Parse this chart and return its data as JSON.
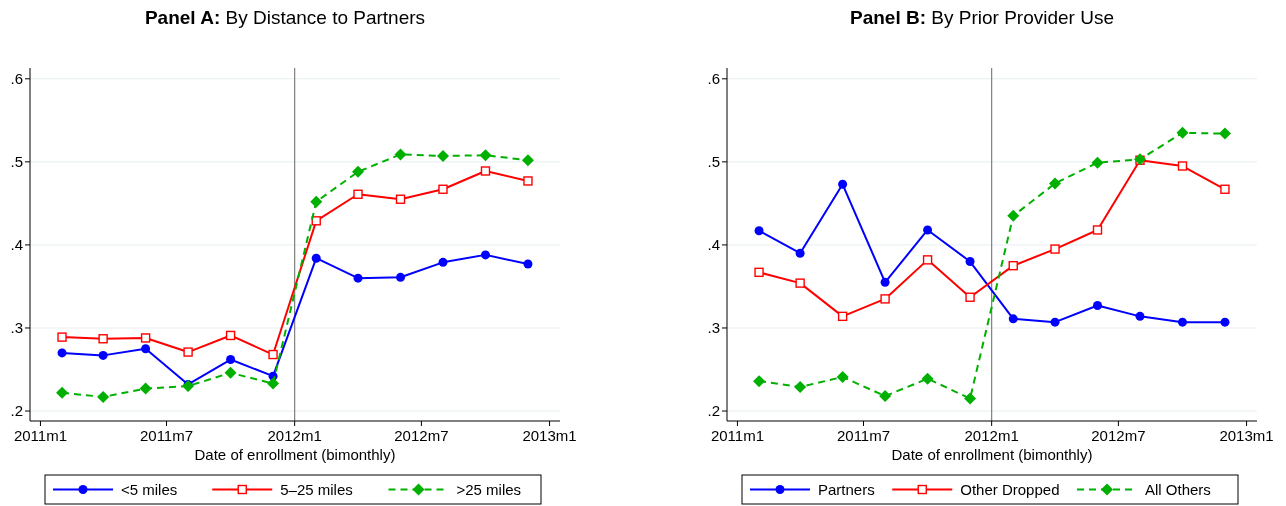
{
  "chart_data": [
    {
      "type": "line",
      "title": "Panel A: By Distance to Partners",
      "xlabel": "Date of enrollment (bimonthly)",
      "x": [
        "2011-02",
        "2011-04",
        "2011-06",
        "2011-08",
        "2011-10",
        "2011-12",
        "2012-02",
        "2012-04",
        "2012-06",
        "2012-08",
        "2012-10",
        "2012-12"
      ],
      "xlim": [
        "2010-12-17",
        "2013-01-16"
      ],
      "xticks": [
        {
          "value": "2011-01",
          "label": "2011m1"
        },
        {
          "value": "2011-07",
          "label": "2011m7"
        },
        {
          "value": "2012-01",
          "label": "2012m1"
        },
        {
          "value": "2012-07",
          "label": "2012m7"
        },
        {
          "value": "2013-01",
          "label": "2013m1"
        }
      ],
      "ylim": [
        0.188,
        0.613
      ],
      "yticks": [
        {
          "value": 0.2,
          "label": ".2"
        },
        {
          "value": 0.3,
          "label": ".3"
        },
        {
          "value": 0.4,
          "label": ".4"
        },
        {
          "value": 0.5,
          "label": ".5"
        },
        {
          "value": 0.6,
          "label": ".6"
        }
      ],
      "grid": "y",
      "legend": "bottom",
      "ref_lines": [
        {
          "axis": "x",
          "value": "2012-01",
          "color": "#7f7f7f"
        }
      ],
      "series": [
        {
          "name": "<5 miles",
          "color": "#0000ff",
          "marker": "circle",
          "line_style": "solid",
          "values": [
            0.27,
            0.267,
            0.275,
            0.232,
            0.262,
            0.242,
            0.384,
            0.36,
            0.361,
            0.379,
            0.388,
            0.377
          ]
        },
        {
          "name": "5–25 miles",
          "color": "#ff0000",
          "marker": "square",
          "line_style": "solid",
          "values": [
            0.289,
            0.287,
            0.288,
            0.271,
            0.291,
            0.268,
            0.429,
            0.461,
            0.455,
            0.467,
            0.489,
            0.477
          ]
        },
        {
          "name": ">25 miles",
          "color": "#00b000",
          "marker": "diamond",
          "line_style": "dashed",
          "values": [
            0.222,
            0.217,
            0.227,
            0.23,
            0.246,
            0.233,
            0.452,
            0.488,
            0.509,
            0.507,
            0.508,
            0.502
          ]
        }
      ]
    },
    {
      "type": "line",
      "title": "Panel B: By Prior Provider Use",
      "xlabel": "Date of enrollment (bimonthly)",
      "x": [
        "2011-02",
        "2011-04",
        "2011-06",
        "2011-08",
        "2011-10",
        "2011-12",
        "2012-02",
        "2012-04",
        "2012-06",
        "2012-08",
        "2012-10",
        "2012-12"
      ],
      "xlim": [
        "2010-12-17",
        "2013-01-16"
      ],
      "xticks": [
        {
          "value": "2011-01",
          "label": "2011m1"
        },
        {
          "value": "2011-07",
          "label": "2011m7"
        },
        {
          "value": "2012-01",
          "label": "2012m1"
        },
        {
          "value": "2012-07",
          "label": "2012m7"
        },
        {
          "value": "2013-01",
          "label": "2013m1"
        }
      ],
      "ylim": [
        0.188,
        0.613
      ],
      "yticks": [
        {
          "value": 0.2,
          "label": ".2"
        },
        {
          "value": 0.3,
          "label": ".3"
        },
        {
          "value": 0.4,
          "label": ".4"
        },
        {
          "value": 0.5,
          "label": ".5"
        },
        {
          "value": 0.6,
          "label": ".6"
        }
      ],
      "grid": "y",
      "legend": "bottom",
      "ref_lines": [
        {
          "axis": "x",
          "value": "2012-01",
          "color": "#7f7f7f"
        }
      ],
      "series": [
        {
          "name": "Partners",
          "color": "#0000ff",
          "marker": "circle",
          "line_style": "solid",
          "values": [
            0.417,
            0.39,
            0.473,
            0.355,
            0.418,
            0.38,
            0.311,
            0.307,
            0.327,
            0.314,
            0.307,
            0.307
          ]
        },
        {
          "name": "Other Dropped",
          "color": "#ff0000",
          "marker": "square",
          "line_style": "solid",
          "values": [
            0.367,
            0.354,
            0.314,
            0.335,
            0.382,
            0.337,
            0.375,
            0.395,
            0.418,
            0.502,
            0.495,
            0.467
          ]
        },
        {
          "name": "All Others",
          "color": "#00b000",
          "marker": "diamond",
          "line_style": "dashed",
          "values": [
            0.236,
            0.229,
            0.241,
            0.218,
            0.239,
            0.215,
            0.435,
            0.474,
            0.499,
            0.503,
            0.535,
            0.534
          ]
        }
      ]
    }
  ]
}
